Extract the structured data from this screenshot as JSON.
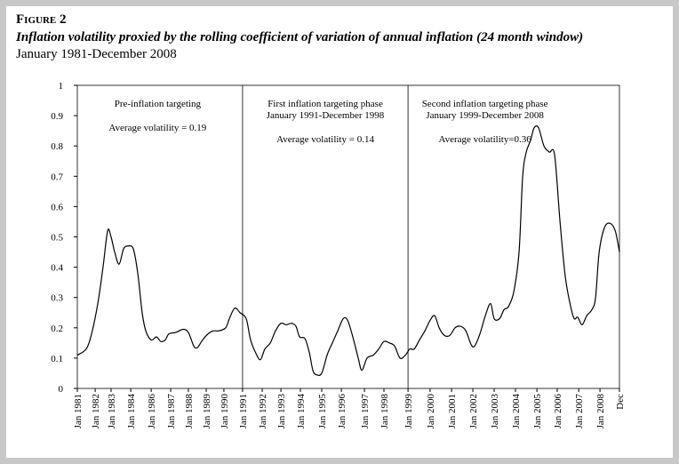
{
  "chart_data": {
    "type": "line",
    "figure_label": "Figure 2",
    "title": "Inflation volatility proxied by the rolling coefficient of variation of annual inflation (24 month window)",
    "subtitle": "January 1981-December 2008",
    "xlim": [
      0,
      27
    ],
    "xticks": [
      {
        "value": 0,
        "label": "Jan 1981"
      },
      {
        "value": 0.89,
        "label": "Jan 1982"
      },
      {
        "value": 1.68,
        "label": "Jan 1983"
      },
      {
        "value": 2.66,
        "label": "Jan 1984"
      },
      {
        "value": 3.68,
        "label": "Jan 1986"
      },
      {
        "value": 4.65,
        "label": "Jan 1987"
      },
      {
        "value": 5.53,
        "label": "Jan 1988"
      },
      {
        "value": 6.42,
        "label": "Jan 1989"
      },
      {
        "value": 7.3,
        "label": "Jan 1990"
      },
      {
        "value": 8.23,
        "label": "Jan 1991"
      },
      {
        "value": 9.21,
        "label": "Jan 1992"
      },
      {
        "value": 10.14,
        "label": "Jan 1993"
      },
      {
        "value": 11.11,
        "label": "Jan 1994"
      },
      {
        "value": 12.17,
        "label": "Jan 1995"
      },
      {
        "value": 13.15,
        "label": "Jan 1996"
      },
      {
        "value": 14.3,
        "label": "Jan 1997"
      },
      {
        "value": 15.27,
        "label": "Jan 1998"
      },
      {
        "value": 16.47,
        "label": "Jan 1999"
      },
      {
        "value": 17.57,
        "label": "Jan 2000"
      },
      {
        "value": 18.64,
        "label": "Jan 2001"
      },
      {
        "value": 19.7,
        "label": "Jan 2002"
      },
      {
        "value": 20.76,
        "label": "Jan 2003"
      },
      {
        "value": 21.82,
        "label": "Jan 2004"
      },
      {
        "value": 22.89,
        "label": "Jan 2005"
      },
      {
        "value": 23.9,
        "label": "Jan 2006"
      },
      {
        "value": 24.97,
        "label": "Jan 2007"
      },
      {
        "value": 26.03,
        "label": "Jan 2008"
      },
      {
        "value": 27,
        "label": "Dec"
      }
    ],
    "ylim": [
      0,
      1
    ],
    "yticks": [
      0,
      0.1,
      0.2,
      0.3,
      0.4,
      0.5,
      0.6,
      0.7,
      0.8,
      0.9,
      1
    ],
    "phase_lines": [
      8.23,
      16.47
    ],
    "annotations": [
      {
        "lines": [
          "Pre-inflation targeting",
          "Average volatility = 0.19"
        ],
        "x": 4.0
      },
      {
        "lines": [
          "First inflation targeting phase",
          "January 1991-December 1998",
          "Average volatility = 0.14"
        ],
        "x": 12.35
      },
      {
        "lines": [
          "Second inflation targeting phase",
          "January 1999-December 2008",
          "Average volatility=0.36"
        ],
        "x": 20.3
      }
    ],
    "series": [
      {
        "color": "#000000",
        "x": [
          0,
          0.44,
          0.71,
          1.02,
          1.28,
          1.51,
          1.68,
          1.86,
          2.08,
          2.3,
          2.52,
          2.79,
          3.01,
          3.23,
          3.41,
          3.68,
          3.94,
          4.16,
          4.38,
          4.56,
          4.91,
          5.27,
          5.53,
          5.8,
          5.98,
          6.24,
          6.51,
          6.77,
          7.04,
          7.39,
          7.57,
          7.84,
          8.1,
          8.41,
          8.63,
          8.9,
          9.12,
          9.34,
          9.61,
          9.87,
          10.14,
          10.4,
          10.67,
          10.89,
          11.07,
          11.33,
          11.55,
          11.73,
          11.91,
          12.17,
          12.44,
          12.7,
          12.97,
          13.24,
          13.46,
          13.72,
          13.99,
          14.17,
          14.43,
          14.74,
          15.01,
          15.27,
          15.54,
          15.8,
          16.07,
          16.34,
          16.56,
          16.78,
          17.04,
          17.31,
          17.57,
          17.8,
          18.02,
          18.28,
          18.55,
          18.81,
          19.08,
          19.35,
          19.61,
          19.79,
          20.05,
          20.32,
          20.58,
          20.76,
          21.03,
          21.25,
          21.47,
          21.74,
          22,
          22.18,
          22.36,
          22.58,
          22.75,
          22.97,
          23.24,
          23.51,
          23.77,
          24.04,
          24.3,
          24.57,
          24.75,
          24.92,
          25.14,
          25.37,
          25.63,
          25.81,
          25.99,
          26.25,
          26.52,
          26.79,
          27
        ],
        "values": [
          0.11,
          0.13,
          0.18,
          0.28,
          0.4,
          0.52,
          0.5,
          0.45,
          0.41,
          0.46,
          0.47,
          0.46,
          0.38,
          0.25,
          0.19,
          0.16,
          0.17,
          0.155,
          0.16,
          0.18,
          0.185,
          0.195,
          0.185,
          0.14,
          0.135,
          0.16,
          0.18,
          0.19,
          0.19,
          0.2,
          0.23,
          0.265,
          0.25,
          0.23,
          0.16,
          0.115,
          0.095,
          0.13,
          0.15,
          0.19,
          0.215,
          0.21,
          0.215,
          0.205,
          0.17,
          0.165,
          0.12,
          0.06,
          0.045,
          0.05,
          0.11,
          0.15,
          0.19,
          0.23,
          0.225,
          0.17,
          0.1,
          0.06,
          0.1,
          0.11,
          0.13,
          0.155,
          0.15,
          0.14,
          0.1,
          0.11,
          0.13,
          0.13,
          0.16,
          0.19,
          0.225,
          0.24,
          0.2,
          0.175,
          0.175,
          0.2,
          0.205,
          0.19,
          0.145,
          0.14,
          0.18,
          0.24,
          0.28,
          0.23,
          0.23,
          0.26,
          0.27,
          0.32,
          0.45,
          0.7,
          0.78,
          0.82,
          0.86,
          0.86,
          0.8,
          0.78,
          0.77,
          0.55,
          0.37,
          0.27,
          0.23,
          0.235,
          0.21,
          0.24,
          0.26,
          0.3,
          0.45,
          0.53,
          0.545,
          0.52,
          0.45
        ]
      }
    ]
  }
}
